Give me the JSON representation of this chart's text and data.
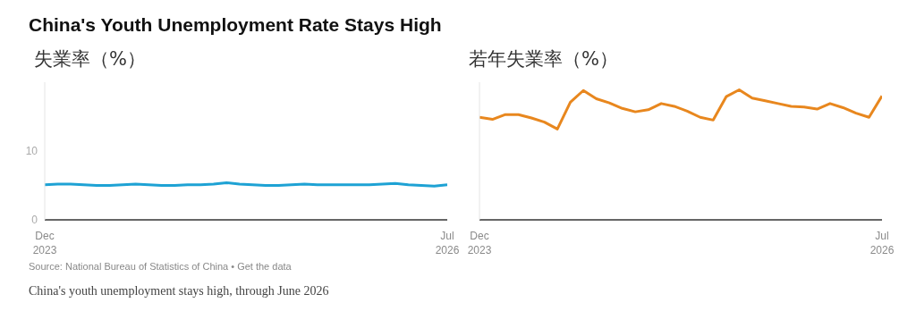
{
  "chart_data": [
    {
      "type": "line",
      "title": "China's Youth Unemployment Rate Stays High",
      "ylabel": "失業率（%）",
      "annotations": [
        "Source: National Bureau of Statistics of China • Get the data",
        "China's youth unemployment stays high, through June 2026"
      ],
      "x": [
        "2023-12",
        "2024-01",
        "2024-02",
        "2024-03",
        "2024-04",
        "2024-05",
        "2024-06",
        "2024-07",
        "2024-08",
        "2024-09",
        "2024-10",
        "2024-11",
        "2024-12",
        "2025-01",
        "2025-02",
        "2025-03",
        "2025-04",
        "2025-05",
        "2025-06",
        "2025-07",
        "2025-08",
        "2025-09",
        "2025-10",
        "2025-11",
        "2025-12",
        "2026-01",
        "2026-02",
        "2026-03",
        "2026-04",
        "2026-05",
        "2026-06",
        "2026-07"
      ],
      "series": [
        {
          "color": "#1ea2d4",
          "values": [
            5.1,
            5.2,
            5.2,
            5.1,
            5.0,
            5.0,
            5.1,
            5.2,
            5.1,
            5.0,
            5.0,
            5.1,
            5.1,
            5.2,
            5.4,
            5.2,
            5.1,
            5.0,
            5.0,
            5.1,
            5.2,
            5.1,
            5.1,
            5.1,
            5.1,
            5.1,
            5.2,
            5.3,
            5.1,
            5.0,
            4.9,
            5.1
          ]
        }
      ],
      "xlim": [
        "2023-12",
        "2026-07"
      ],
      "xticks": [
        {
          "value": "2023-12",
          "label": "Dec 2023"
        },
        {
          "value": "2026-07",
          "label": "Jul 2026"
        }
      ],
      "ylim": [
        0,
        20
      ],
      "yticks": [
        0,
        10
      ]
    },
    {
      "type": "line",
      "ylabel": "若年失業率（%）",
      "x": [
        "2023-12",
        "2024-01",
        "2024-02",
        "2024-03",
        "2024-04",
        "2024-05",
        "2024-06",
        "2024-07",
        "2024-08",
        "2024-09",
        "2024-10",
        "2024-11",
        "2024-12",
        "2025-01",
        "2025-02",
        "2025-03",
        "2025-04",
        "2025-05",
        "2025-06",
        "2025-07",
        "2025-08",
        "2025-09",
        "2025-10",
        "2025-11",
        "2025-12",
        "2026-01",
        "2026-02",
        "2026-03",
        "2026-04",
        "2026-05",
        "2026-06",
        "2026-07"
      ],
      "series": [
        {
          "color": "#e8871e",
          "values": [
            14.9,
            14.6,
            15.3,
            15.3,
            14.8,
            14.2,
            13.2,
            17.1,
            18.8,
            17.6,
            17.0,
            16.2,
            15.7,
            16.0,
            16.9,
            16.5,
            15.8,
            14.9,
            14.5,
            17.9,
            18.9,
            17.7,
            17.3,
            16.9,
            16.5,
            16.4,
            16.1,
            16.9,
            16.3,
            15.5,
            14.9,
            18.0
          ]
        }
      ],
      "xlim": [
        "2023-12",
        "2026-07"
      ],
      "xticks": [
        {
          "value": "2023-12",
          "label": "Dec 2023"
        },
        {
          "value": "2026-07",
          "label": "Jul 2026"
        }
      ],
      "ylim": [
        0,
        20
      ],
      "tick_labels": "x"
    }
  ]
}
